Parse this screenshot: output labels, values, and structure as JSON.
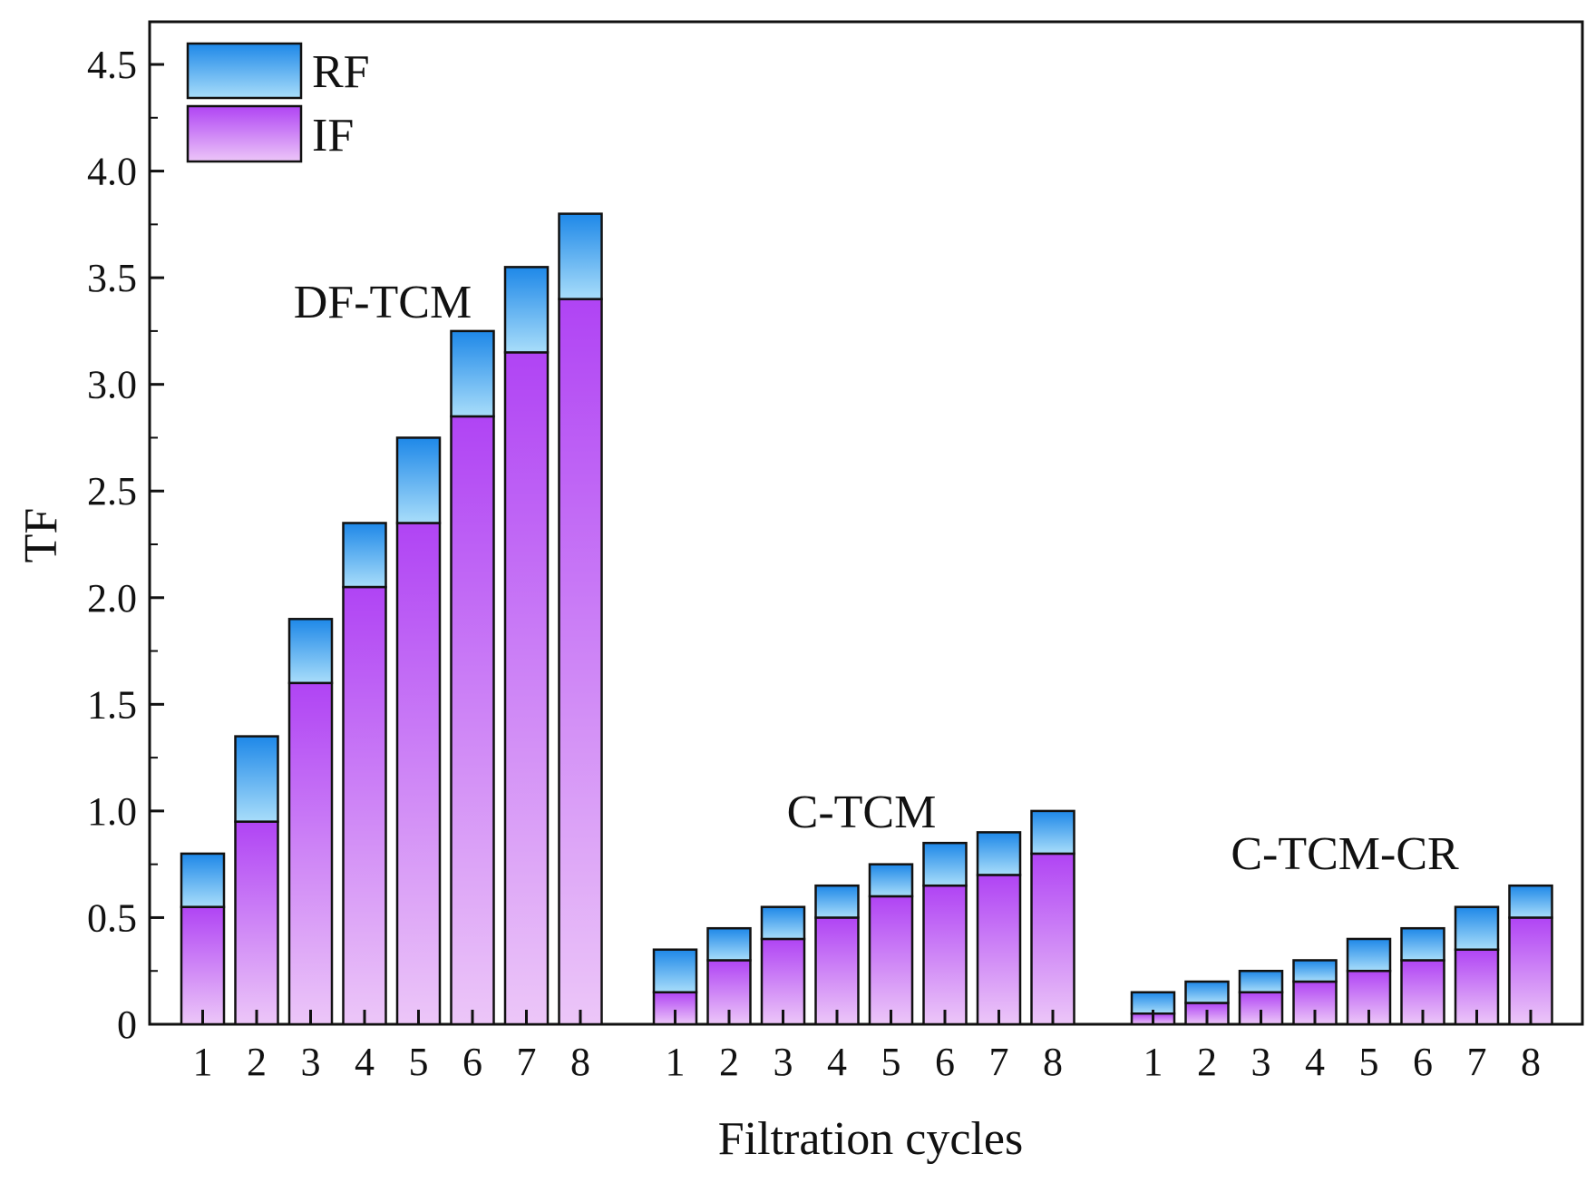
{
  "chart_data": {
    "type": "bar",
    "stacked": true,
    "title": "",
    "xlabel": "Filtration cycles",
    "ylabel": "TF",
    "ylim": [
      0,
      4.7
    ],
    "yticks": [
      {
        "value": 0,
        "label": "0"
      },
      {
        "value": 0.5,
        "label": "0.5"
      },
      {
        "value": 1.0,
        "label": "1.0"
      },
      {
        "value": 1.5,
        "label": "1.5"
      },
      {
        "value": 2.0,
        "label": "2.0"
      },
      {
        "value": 2.5,
        "label": "2.5"
      },
      {
        "value": 3.0,
        "label": "3.0"
      },
      {
        "value": 3.5,
        "label": "3.5"
      },
      {
        "value": 4.0,
        "label": "4.0"
      },
      {
        "value": 4.5,
        "label": "4.5"
      }
    ],
    "legend": {
      "placement": "top-left",
      "entries": [
        {
          "name": "RF",
          "color_top": "#1e88e8",
          "color_bottom": "#a8ddfa"
        },
        {
          "name": "IF",
          "color_top": "#b044f4",
          "color_bottom": "#ecc6f8"
        }
      ]
    },
    "groups": [
      {
        "name": "DF-TCM",
        "categories": [
          "1",
          "2",
          "3",
          "4",
          "5",
          "6",
          "7",
          "8"
        ],
        "series": [
          {
            "name": "IF",
            "values": [
              0.55,
              0.95,
              1.6,
              2.05,
              2.35,
              2.85,
              3.15,
              3.4
            ]
          },
          {
            "name": "RF",
            "values": [
              0.25,
              0.4,
              0.3,
              0.3,
              0.4,
              0.4,
              0.4,
              0.4
            ]
          }
        ],
        "totals": [
          0.8,
          1.35,
          1.9,
          2.35,
          2.75,
          3.25,
          3.55,
          3.8
        ]
      },
      {
        "name": "C-TCM",
        "categories": [
          "1",
          "2",
          "3",
          "4",
          "5",
          "6",
          "7",
          "8"
        ],
        "series": [
          {
            "name": "IF",
            "values": [
              0.15,
              0.3,
              0.4,
              0.5,
              0.6,
              0.65,
              0.7,
              0.8
            ]
          },
          {
            "name": "RF",
            "values": [
              0.2,
              0.15,
              0.15,
              0.15,
              0.15,
              0.2,
              0.2,
              0.2
            ]
          }
        ],
        "totals": [
          0.35,
          0.45,
          0.55,
          0.65,
          0.75,
          0.85,
          0.9,
          1.0
        ]
      },
      {
        "name": "C-TCM-CR",
        "categories": [
          "1",
          "2",
          "3",
          "4",
          "5",
          "6",
          "7",
          "8"
        ],
        "series": [
          {
            "name": "IF",
            "values": [
              0.05,
              0.1,
              0.15,
              0.2,
              0.25,
              0.3,
              0.35,
              0.5
            ]
          },
          {
            "name": "RF",
            "values": [
              0.1,
              0.1,
              0.1,
              0.1,
              0.15,
              0.15,
              0.2,
              0.15
            ]
          }
        ],
        "totals": [
          0.15,
          0.2,
          0.25,
          0.3,
          0.4,
          0.45,
          0.55,
          0.65
        ]
      }
    ]
  }
}
